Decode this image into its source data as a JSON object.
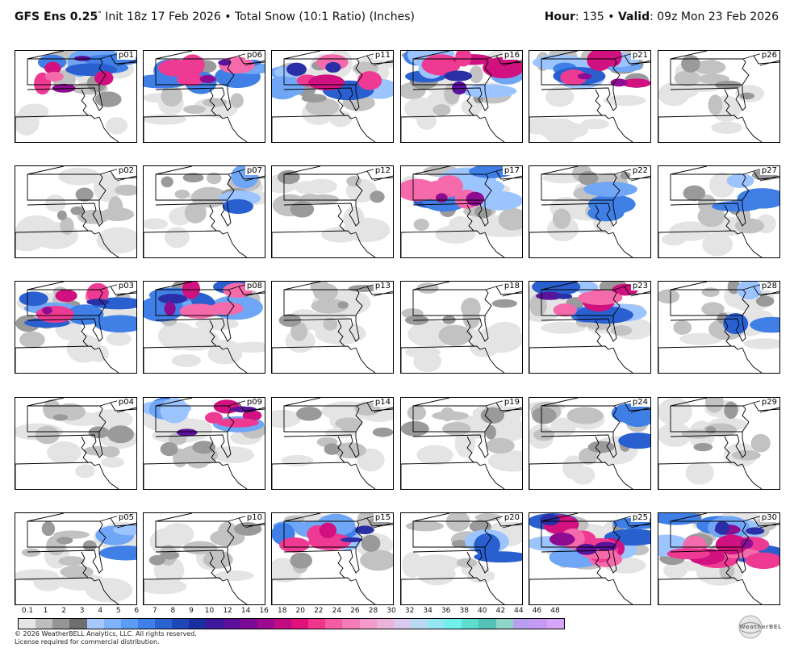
{
  "header": {
    "model": "GFS Ens 0.25",
    "degree": "°",
    "init": "Init 18z 17 Feb 2026",
    "bullet": "•",
    "product": "Total Snow (10:1 Ratio) (Inches)",
    "hour_label": "Hour",
    "hour_value": ": 135",
    "valid_label": "Valid",
    "valid_value": ": 09z Mon 23 Feb 2026"
  },
  "panels": [
    {
      "id": "p01",
      "row": 0,
      "col": 0,
      "snow": "heavy-north"
    },
    {
      "id": "p06",
      "row": 0,
      "col": 1,
      "snow": "band-central"
    },
    {
      "id": "p11",
      "row": 0,
      "col": 2,
      "snow": "heavy-central"
    },
    {
      "id": "p16",
      "row": 0,
      "col": 3,
      "snow": "heavy-central"
    },
    {
      "id": "p21",
      "row": 0,
      "col": 4,
      "snow": "heavy-north"
    },
    {
      "id": "p26",
      "row": 0,
      "col": 5,
      "snow": "light"
    },
    {
      "id": "p02",
      "row": 1,
      "col": 0,
      "snow": "light"
    },
    {
      "id": "p07",
      "row": 1,
      "col": 1,
      "snow": "moderate-northeast"
    },
    {
      "id": "p12",
      "row": 1,
      "col": 2,
      "snow": "light"
    },
    {
      "id": "p17",
      "row": 1,
      "col": 3,
      "snow": "band-central"
    },
    {
      "id": "p22",
      "row": 1,
      "col": 4,
      "snow": "moderate-northeast"
    },
    {
      "id": "p27",
      "row": 1,
      "col": 5,
      "snow": "moderate-northeast"
    },
    {
      "id": "p03",
      "row": 2,
      "col": 0,
      "snow": "heavy-central"
    },
    {
      "id": "p08",
      "row": 2,
      "col": 1,
      "snow": "heavy-north"
    },
    {
      "id": "p13",
      "row": 2,
      "col": 2,
      "snow": "light"
    },
    {
      "id": "p18",
      "row": 2,
      "col": 3,
      "snow": "light"
    },
    {
      "id": "p23",
      "row": 2,
      "col": 4,
      "snow": "heavy-central"
    },
    {
      "id": "p28",
      "row": 2,
      "col": 5,
      "snow": "moderate-northeast"
    },
    {
      "id": "p04",
      "row": 3,
      "col": 0,
      "snow": "light"
    },
    {
      "id": "p09",
      "row": 3,
      "col": 1,
      "snow": "heavy-north"
    },
    {
      "id": "p14",
      "row": 3,
      "col": 2,
      "snow": "light"
    },
    {
      "id": "p19",
      "row": 3,
      "col": 3,
      "snow": "light"
    },
    {
      "id": "p24",
      "row": 3,
      "col": 4,
      "snow": "moderate-northeast"
    },
    {
      "id": "p29",
      "row": 3,
      "col": 5,
      "snow": "light"
    },
    {
      "id": "p05",
      "row": 4,
      "col": 0,
      "snow": "moderate-northeast"
    },
    {
      "id": "p10",
      "row": 4,
      "col": 1,
      "snow": "light"
    },
    {
      "id": "p15",
      "row": 4,
      "col": 2,
      "snow": "heavy-north"
    },
    {
      "id": "p20",
      "row": 4,
      "col": 3,
      "snow": "moderate-northeast"
    },
    {
      "id": "p25",
      "row": 4,
      "col": 4,
      "snow": "very-heavy"
    },
    {
      "id": "p30",
      "row": 4,
      "col": 5,
      "snow": "very-heavy"
    }
  ],
  "colorbar": {
    "labels": [
      "0.1",
      "1",
      "2",
      "3",
      "4",
      "5",
      "6",
      "7",
      "8",
      "9",
      "10",
      "12",
      "14",
      "16",
      "18",
      "20",
      "22",
      "24",
      "26",
      "28",
      "30",
      "32",
      "34",
      "36",
      "38",
      "40",
      "42",
      "44",
      "46",
      "48"
    ],
    "colors": [
      "#e6e6e6",
      "#bdbdbd",
      "#969696",
      "#6e6e6e",
      "#a6c8ff",
      "#7fb2ff",
      "#5c9cf5",
      "#3c80e8",
      "#2b63d1",
      "#1e47b8",
      "#1a2fa0",
      "#3d1a9c",
      "#5e0f9a",
      "#7c0a97",
      "#9b0a8f",
      "#c00c83",
      "#e0117a",
      "#f0358d",
      "#f55ca3",
      "#f57cb8",
      "#f29bcc",
      "#e9b5dc",
      "#d9c9ec",
      "#b9d9f2",
      "#93e6f2",
      "#6ff0ea",
      "#5dddd0",
      "#54c2b6",
      "#8fd6c8",
      "#b8a0f0",
      "#c59af5",
      "#d7a5f7"
    ]
  },
  "footer": {
    "line1": "© 2026 WeatherBELL Analytics, LLC. All rights reserved.",
    "line2": "License required for commercial distribution."
  },
  "logo": {
    "text": "WeatherBELL"
  }
}
